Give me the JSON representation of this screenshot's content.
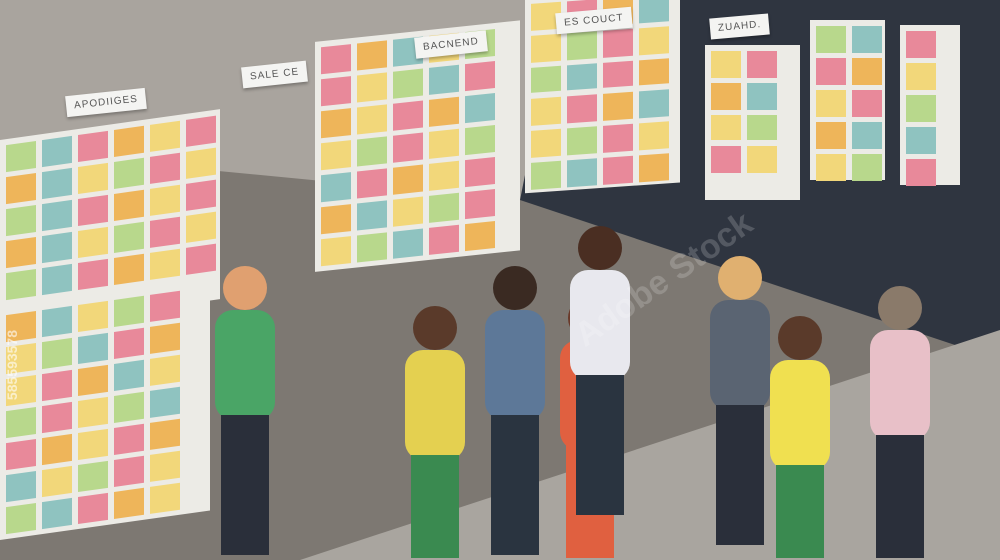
{
  "board_labels": [
    "APODIIGES",
    "SALE CE",
    "BACNEND",
    "ES COUCT",
    "ZUAHD."
  ],
  "watermark": "Adobe Stock",
  "stock_id": "585593578",
  "colors": {
    "wall": "#8a8580",
    "dark_wall": "#2f3540",
    "floor": "#9a9690",
    "note_yellow": "#f2d77a",
    "note_teal": "#8fc3c0",
    "note_pink": "#e8899a",
    "note_green": "#b8d88c",
    "note_orange": "#eeb55a"
  }
}
